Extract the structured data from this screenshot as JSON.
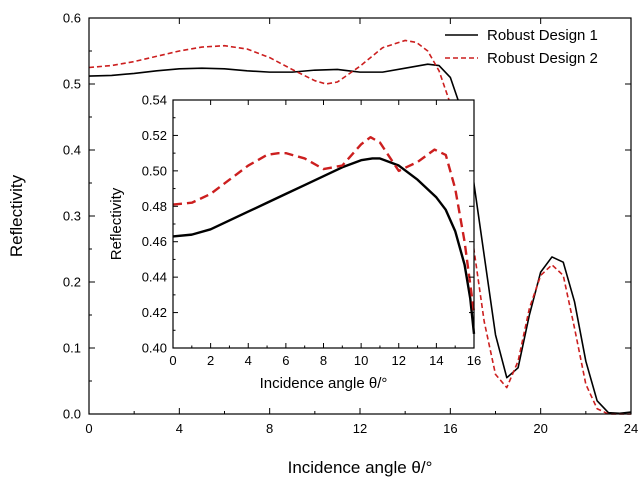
{
  "chart_data": [
    {
      "id": "main",
      "type": "line",
      "xlabel": "Incidence angle θ/°",
      "ylabel": "Reflectivity",
      "xlim": [
        0,
        24
      ],
      "ylim": [
        0.0,
        0.6
      ],
      "xticks": [
        0,
        4,
        8,
        12,
        16,
        20,
        24
      ],
      "yticks": [
        0.0,
        0.1,
        0.2,
        0.3,
        0.4,
        0.5,
        0.6
      ],
      "xtick_labels": [
        "0",
        "4",
        "8",
        "12",
        "16",
        "20",
        "24"
      ],
      "ytick_labels": [
        "0.0",
        "0.1",
        "0.2",
        "0.3",
        "0.4",
        "0.5",
        "0.6"
      ],
      "legend_position": "top-right",
      "series": [
        {
          "name": "Robust Design 1",
          "color": "#000000",
          "dash": "solid",
          "x": [
            0,
            1,
            2,
            3,
            4,
            5,
            6,
            7,
            8,
            9,
            10,
            11,
            11.5,
            12,
            13,
            14,
            15,
            15.5,
            16,
            16.5,
            17,
            17.5,
            18,
            18.5,
            19,
            19.5,
            20,
            20.5,
            21,
            21.5,
            22,
            22.5,
            23,
            23.5,
            24
          ],
          "y": [
            0.512,
            0.513,
            0.516,
            0.52,
            0.523,
            0.524,
            0.523,
            0.52,
            0.518,
            0.518,
            0.521,
            0.522,
            0.52,
            0.518,
            0.518,
            0.524,
            0.53,
            0.528,
            0.51,
            0.46,
            0.36,
            0.24,
            0.12,
            0.055,
            0.07,
            0.15,
            0.215,
            0.238,
            0.23,
            0.17,
            0.08,
            0.02,
            0.002,
            0.001,
            0.003
          ]
        },
        {
          "name": "Robust Design 2",
          "color": "#cc1f1f",
          "dash": "dashed",
          "x": [
            0,
            1,
            2,
            3,
            4,
            5,
            6,
            7,
            8,
            9,
            10,
            10.5,
            11,
            12,
            13,
            14,
            14.5,
            15,
            15.5,
            16,
            16.5,
            17,
            17.5,
            18,
            18.5,
            19,
            19.5,
            20,
            20.5,
            21,
            21.5,
            22,
            22.5,
            23,
            23.5,
            24
          ],
          "y": [
            0.525,
            0.528,
            0.534,
            0.542,
            0.55,
            0.556,
            0.558,
            0.553,
            0.54,
            0.522,
            0.505,
            0.5,
            0.503,
            0.527,
            0.555,
            0.566,
            0.563,
            0.55,
            0.52,
            0.47,
            0.38,
            0.26,
            0.14,
            0.06,
            0.04,
            0.08,
            0.16,
            0.21,
            0.226,
            0.21,
            0.13,
            0.045,
            0.008,
            0.0,
            0.0,
            0.0
          ]
        }
      ]
    },
    {
      "id": "inset",
      "type": "line",
      "xlabel": "Incidence angle θ/°",
      "ylabel": "Reflectivity",
      "xlim": [
        0,
        16
      ],
      "ylim": [
        0.4,
        0.54
      ],
      "xticks": [
        0,
        2,
        4,
        6,
        8,
        10,
        12,
        14,
        16
      ],
      "yticks": [
        0.4,
        0.42,
        0.44,
        0.46,
        0.48,
        0.5,
        0.52,
        0.54
      ],
      "xtick_labels": [
        "0",
        "2",
        "4",
        "6",
        "8",
        "10",
        "12",
        "14",
        "16"
      ],
      "ytick_labels": [
        "0.40",
        "0.42",
        "0.44",
        "0.46",
        "0.48",
        "0.50",
        "0.52",
        "0.54"
      ],
      "series": [
        {
          "name": "Robust Design 1",
          "color": "#000000",
          "dash": "solid",
          "x": [
            0,
            1,
            2,
            3,
            4,
            5,
            6,
            7,
            8,
            9,
            10,
            10.6,
            11,
            12,
            13,
            14,
            14.5,
            15,
            15.5,
            15.8,
            16
          ],
          "y": [
            0.463,
            0.464,
            0.467,
            0.472,
            0.477,
            0.482,
            0.487,
            0.492,
            0.497,
            0.502,
            0.506,
            0.507,
            0.507,
            0.503,
            0.495,
            0.485,
            0.478,
            0.466,
            0.447,
            0.428,
            0.408
          ]
        },
        {
          "name": "Robust Design 2",
          "color": "#cc1f1f",
          "dash": "dashed",
          "x": [
            0,
            1,
            2,
            3,
            4,
            5,
            5.6,
            6,
            7,
            8,
            9,
            10,
            10.5,
            11,
            12,
            13,
            13.9,
            14.5,
            15,
            15.5,
            16
          ],
          "y": [
            0.481,
            0.482,
            0.487,
            0.495,
            0.503,
            0.509,
            0.51,
            0.51,
            0.507,
            0.501,
            0.503,
            0.515,
            0.519,
            0.516,
            0.5,
            0.505,
            0.512,
            0.509,
            0.49,
            0.46,
            0.42
          ]
        }
      ]
    }
  ]
}
